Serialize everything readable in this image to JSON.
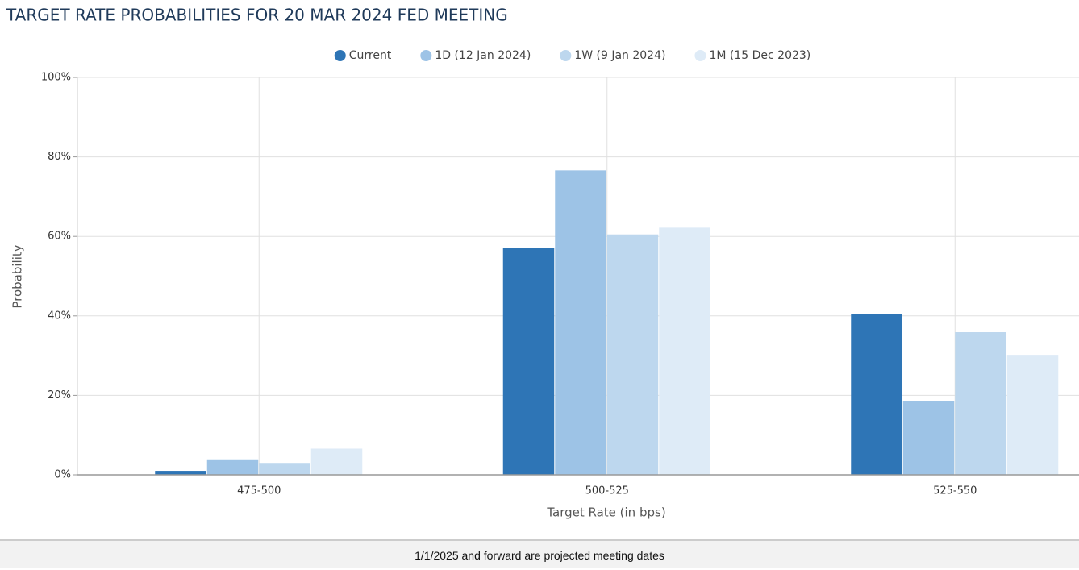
{
  "chart_data": {
    "type": "bar",
    "title": "TARGET RATE PROBABILITIES FOR 20 MAR 2024 FED MEETING",
    "x_label": "Target Rate (in bps)",
    "y_label": "Probability",
    "categories": [
      "475-500",
      "500-525",
      "525-550"
    ],
    "series": [
      {
        "name": "Current",
        "color": "#2e75b6",
        "values": [
          1.0,
          57.2,
          40.5
        ]
      },
      {
        "name": "1D (12 Jan 2024)",
        "color": "#9dc3e6",
        "values": [
          3.9,
          76.6,
          18.6
        ]
      },
      {
        "name": "1W (9 Jan 2024)",
        "color": "#bdd7ee",
        "values": [
          3.0,
          60.5,
          35.9
        ]
      },
      {
        "name": "1M (15 Dec 2023)",
        "color": "#deebf7",
        "values": [
          6.6,
          62.2,
          30.2
        ]
      }
    ],
    "ylim": [
      0,
      100
    ],
    "yticks": [
      {
        "value": 0,
        "label": "0%"
      },
      {
        "value": 20,
        "label": "20%"
      },
      {
        "value": 40,
        "label": "40%"
      },
      {
        "value": 60,
        "label": "60%"
      },
      {
        "value": 80,
        "label": "80%"
      },
      {
        "value": 100,
        "label": "100%"
      }
    ],
    "grid": true,
    "legend": "top"
  },
  "footer": "1/1/2025 and forward are projected meeting dates"
}
